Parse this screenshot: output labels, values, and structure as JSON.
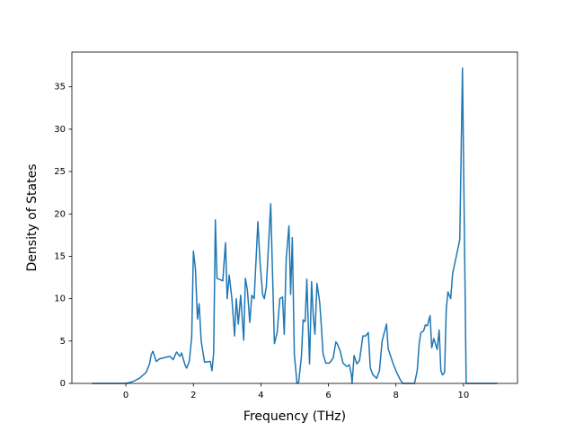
{
  "chart_data": {
    "type": "line",
    "x_label": "Frequency (THz)",
    "y_label": "Density of States",
    "xlim": [
      -1.6,
      11.6
    ],
    "ylim": [
      0,
      39.1
    ],
    "xticks": [
      0,
      2,
      4,
      6,
      8,
      10
    ],
    "yticks": [
      0,
      5,
      10,
      15,
      20,
      25,
      30,
      35
    ],
    "grid": false,
    "series": [
      {
        "color": "#1f77b4",
        "x": [
          -1,
          0,
          0.2,
          0.4,
          0.6,
          0.7,
          0.75,
          0.8,
          0.9,
          1.0,
          1.2,
          1.3,
          1.4,
          1.5,
          1.6,
          1.65,
          1.75,
          1.8,
          1.88,
          1.95,
          2.0,
          2.06,
          2.12,
          2.17,
          2.23,
          2.33,
          2.5,
          2.55,
          2.6,
          2.65,
          2.7,
          2.87,
          2.95,
          3.0,
          3.06,
          3.14,
          3.22,
          3.27,
          3.33,
          3.4,
          3.49,
          3.54,
          3.6,
          3.67,
          3.73,
          3.8,
          3.91,
          3.97,
          4.05,
          4.1,
          4.16,
          4.21,
          4.29,
          4.34,
          4.4,
          4.48,
          4.56,
          4.64,
          4.69,
          4.75,
          4.83,
          4.88,
          4.93,
          4.99,
          5.07,
          5.12,
          5.2,
          5.25,
          5.31,
          5.36,
          5.44,
          5.5,
          5.55,
          5.6,
          5.66,
          5.74,
          5.79,
          5.84,
          5.92,
          6.03,
          6.14,
          6.22,
          6.27,
          6.35,
          6.43,
          6.54,
          6.62,
          6.68,
          6.7,
          6.76,
          6.84,
          6.92,
          7.02,
          7.1,
          7.18,
          7.24,
          7.32,
          7.43,
          7.51,
          7.59,
          7.72,
          7.77,
          7.91,
          8.02,
          8.12,
          8.2,
          8.55,
          8.63,
          8.69,
          8.74,
          8.82,
          8.87,
          8.93,
          9.01,
          9.06,
          9.12,
          9.22,
          9.28,
          9.33,
          9.38,
          9.44,
          9.49,
          9.54,
          9.62,
          9.68,
          9.76,
          9.84,
          9.89,
          9.97,
          10.08,
          11
        ],
        "values": [
          0,
          0,
          0.2,
          0.6,
          1.3,
          2.3,
          3.4,
          3.8,
          2.6,
          2.9,
          3.1,
          3.2,
          2.8,
          3.7,
          3.2,
          3.6,
          2.2,
          1.8,
          2.6,
          5.5,
          15.6,
          13.5,
          7.6,
          9.4,
          5.0,
          2.5,
          2.6,
          1.5,
          3.6,
          19.3,
          12.4,
          12.1,
          16.6,
          10.0,
          12.8,
          10.0,
          5.6,
          10.0,
          7.0,
          10.4,
          5.1,
          12.4,
          11.0,
          7.2,
          10.4,
          10.0,
          19.1,
          14.5,
          10.5,
          10.0,
          11.4,
          15.2,
          21.2,
          13.5,
          4.7,
          6.0,
          10.0,
          10.2,
          5.8,
          14.8,
          18.6,
          10.5,
          17.2,
          3.4,
          0,
          0.2,
          3.2,
          7.5,
          7.3,
          12.3,
          2.3,
          12.0,
          8.0,
          5.8,
          11.8,
          9.6,
          6.8,
          3.5,
          2.4,
          2.4,
          3.0,
          4.9,
          4.6,
          3.8,
          2.4,
          2.0,
          2.2,
          1.0,
          0,
          3.3,
          2.3,
          2.7,
          5.6,
          5.6,
          6.0,
          1.8,
          1.0,
          0.6,
          1.5,
          5.0,
          7.0,
          4.1,
          2.4,
          1.3,
          0.5,
          0,
          0,
          1.5,
          4.8,
          6.0,
          6.2,
          6.9,
          6.8,
          8.0,
          4.2,
          5.3,
          4.0,
          6.3,
          1.5,
          1.0,
          1.3,
          8.8,
          10.8,
          10.0,
          13.0,
          14.5,
          16.0,
          17.0,
          37.2,
          0,
          0
        ]
      }
    ]
  }
}
